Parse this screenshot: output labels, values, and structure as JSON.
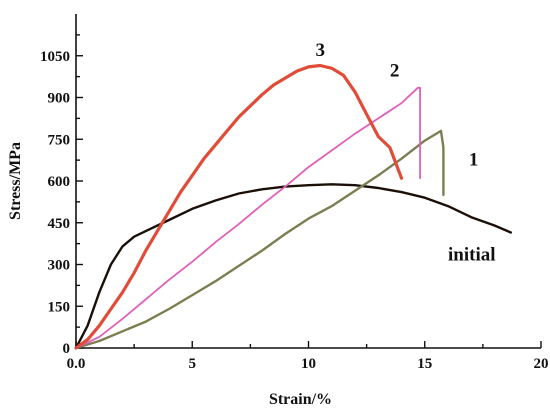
{
  "chart_data": {
    "type": "line",
    "title": "",
    "xlabel": "Strain/%",
    "ylabel": "Stress/MPa",
    "xlim": [
      0,
      20
    ],
    "ylim": [
      0,
      1200
    ],
    "x_ticks": [
      0,
      5,
      10,
      15,
      20
    ],
    "x_tick_labels": [
      "0.0",
      "5",
      "10",
      "15",
      "20"
    ],
    "y_ticks": [
      0,
      150,
      300,
      450,
      600,
      750,
      900,
      1050
    ],
    "y_tick_labels": [
      "0",
      "150",
      "300",
      "450",
      "600",
      "750",
      "900",
      "1050"
    ],
    "grid": false,
    "legend": "none",
    "series": [
      {
        "name": "initial",
        "color": "#1a1008",
        "points": [
          [
            0,
            0
          ],
          [
            0.5,
            80
          ],
          [
            1.0,
            200
          ],
          [
            1.5,
            300
          ],
          [
            2.0,
            365
          ],
          [
            2.5,
            400
          ],
          [
            3.0,
            420
          ],
          [
            4.0,
            460
          ],
          [
            5.0,
            500
          ],
          [
            6.0,
            530
          ],
          [
            7.0,
            555
          ],
          [
            8.0,
            570
          ],
          [
            9.0,
            580
          ],
          [
            10.0,
            585
          ],
          [
            11.0,
            588
          ],
          [
            12.0,
            585
          ],
          [
            13.0,
            575
          ],
          [
            14.0,
            560
          ],
          [
            15.0,
            540
          ],
          [
            16.0,
            510
          ],
          [
            17.0,
            470
          ],
          [
            18.0,
            440
          ],
          [
            18.7,
            415
          ]
        ]
      },
      {
        "name": "1",
        "color": "#7c7e52",
        "points": [
          [
            0,
            0
          ],
          [
            1.0,
            25
          ],
          [
            2.0,
            60
          ],
          [
            3.0,
            95
          ],
          [
            4.0,
            140
          ],
          [
            5.0,
            190
          ],
          [
            6.0,
            240
          ],
          [
            7.0,
            295
          ],
          [
            8.0,
            350
          ],
          [
            9.0,
            410
          ],
          [
            10.0,
            465
          ],
          [
            11.0,
            510
          ],
          [
            12.0,
            565
          ],
          [
            13.0,
            620
          ],
          [
            14.0,
            680
          ],
          [
            15.0,
            745
          ],
          [
            15.7,
            780
          ],
          [
            15.8,
            720
          ],
          [
            15.8,
            550
          ]
        ]
      },
      {
        "name": "2",
        "color": "#e060b8",
        "points": [
          [
            0,
            0
          ],
          [
            1.0,
            40
          ],
          [
            2.0,
            105
          ],
          [
            3.0,
            175
          ],
          [
            4.0,
            245
          ],
          [
            5.0,
            310
          ],
          [
            6.0,
            380
          ],
          [
            7.0,
            445
          ],
          [
            8.0,
            515
          ],
          [
            9.0,
            580
          ],
          [
            10.0,
            650
          ],
          [
            11.0,
            710
          ],
          [
            12.0,
            770
          ],
          [
            13.0,
            825
          ],
          [
            14.0,
            880
          ],
          [
            14.7,
            935
          ],
          [
            14.8,
            935
          ],
          [
            14.8,
            610
          ]
        ]
      },
      {
        "name": "3",
        "color": "#e04c38",
        "points": [
          [
            0,
            0
          ],
          [
            0.5,
            30
          ],
          [
            1.0,
            80
          ],
          [
            1.5,
            140
          ],
          [
            2.0,
            200
          ],
          [
            2.5,
            270
          ],
          [
            3.0,
            350
          ],
          [
            3.5,
            420
          ],
          [
            4.0,
            490
          ],
          [
            4.5,
            560
          ],
          [
            5.0,
            620
          ],
          [
            5.5,
            680
          ],
          [
            6.0,
            730
          ],
          [
            6.5,
            780
          ],
          [
            7.0,
            830
          ],
          [
            7.5,
            870
          ],
          [
            8.0,
            910
          ],
          [
            8.5,
            945
          ],
          [
            9.0,
            970
          ],
          [
            9.5,
            995
          ],
          [
            10.0,
            1010
          ],
          [
            10.5,
            1015
          ],
          [
            11.0,
            1005
          ],
          [
            11.5,
            980
          ],
          [
            12.0,
            920
          ],
          [
            12.5,
            840
          ],
          [
            13.0,
            760
          ],
          [
            13.5,
            720
          ],
          [
            14.0,
            610
          ]
        ]
      }
    ],
    "series_labels": [
      {
        "text": "3",
        "x": 10.3,
        "y": 1050
      },
      {
        "text": "2",
        "x": 13.5,
        "y": 975
      },
      {
        "text": "1",
        "x": 16.9,
        "y": 655
      },
      {
        "text": "initial",
        "x": 16.0,
        "y": 315
      }
    ]
  }
}
